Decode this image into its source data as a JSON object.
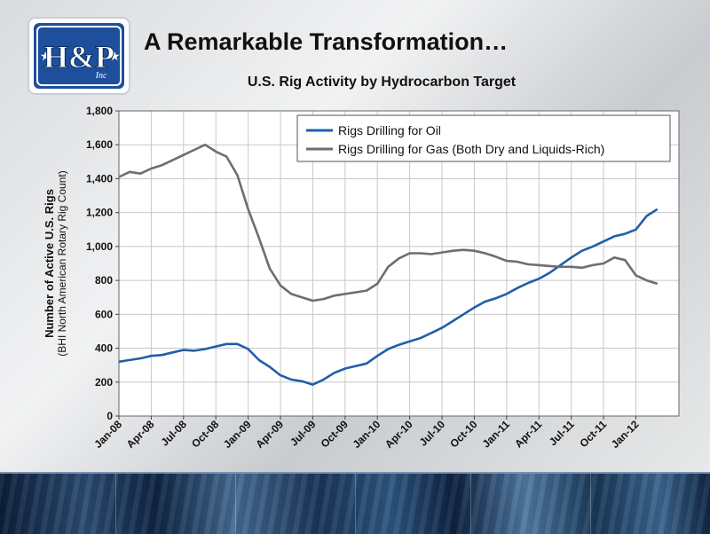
{
  "slide": {
    "title": "A  Remarkable Transformation…",
    "logo_text": "H&P",
    "logo_suffix": "Inc"
  },
  "colors": {
    "oil": "#1f5fa8",
    "gas": "#6e6e6e",
    "logo_blue": "#1d4f9c"
  },
  "chart_data": {
    "type": "line",
    "title": "U.S. Rig Activity by Hydrocarbon Target",
    "ylabel": "Number of Active U.S. Rigs",
    "ylabel2": "(BHI North American Rotary Rig Count)",
    "xlabel": "",
    "ylim": [
      0,
      1800
    ],
    "yticks": [
      "0",
      "200",
      "400",
      "600",
      "800",
      "1,000",
      "1,200",
      "1,400",
      "1,600",
      "1,800"
    ],
    "xlim": [
      "Jan-08",
      "May-12"
    ],
    "xticks": [
      "Jan-08",
      "Apr-08",
      "Jul-08",
      "Oct-08",
      "Jan-09",
      "Apr-09",
      "Jul-09",
      "Oct-09",
      "Jan-10",
      "Apr-10",
      "Jul-10",
      "Oct-10",
      "Jan-11",
      "Apr-11",
      "Jul-11",
      "Oct-11",
      "Jan-12"
    ],
    "grid": true,
    "legend": "top-right",
    "series": [
      {
        "name": "Rigs Drilling for Oil",
        "color": "#1f5fa8",
        "x": [
          "Jan-08",
          "Feb-08",
          "Mar-08",
          "Apr-08",
          "May-08",
          "Jun-08",
          "Jul-08",
          "Aug-08",
          "Sep-08",
          "Oct-08",
          "Nov-08",
          "Dec-08",
          "Jan-09",
          "Feb-09",
          "Mar-09",
          "Apr-09",
          "May-09",
          "Jun-09",
          "Jul-09",
          "Aug-09",
          "Sep-09",
          "Oct-09",
          "Nov-09",
          "Dec-09",
          "Jan-10",
          "Feb-10",
          "Mar-10",
          "Apr-10",
          "May-10",
          "Jun-10",
          "Jul-10",
          "Aug-10",
          "Sep-10",
          "Oct-10",
          "Nov-10",
          "Dec-10",
          "Jan-11",
          "Feb-11",
          "Mar-11",
          "Apr-11",
          "May-11",
          "Jun-11",
          "Jul-11",
          "Aug-11",
          "Sep-11",
          "Oct-11",
          "Nov-11",
          "Dec-11",
          "Jan-12",
          "Feb-12",
          "Mar-12"
        ],
        "values": [
          320,
          330,
          340,
          355,
          360,
          375,
          390,
          385,
          395,
          410,
          425,
          425,
          395,
          330,
          290,
          240,
          215,
          205,
          185,
          215,
          255,
          280,
          295,
          310,
          355,
          395,
          420,
          440,
          460,
          490,
          520,
          560,
          600,
          640,
          675,
          695,
          720,
          755,
          785,
          810,
          845,
          890,
          935,
          975,
          1000,
          1030,
          1060,
          1075,
          1100,
          1180,
          1220
        ]
      },
      {
        "name": "Rigs Drilling for Gas (Both Dry and Liquids-Rich)",
        "color": "#6e6e6e",
        "x": [
          "Jan-08",
          "Feb-08",
          "Mar-08",
          "Apr-08",
          "May-08",
          "Jun-08",
          "Jul-08",
          "Aug-08",
          "Sep-08",
          "Oct-08",
          "Nov-08",
          "Dec-08",
          "Jan-09",
          "Feb-09",
          "Mar-09",
          "Apr-09",
          "May-09",
          "Jun-09",
          "Jul-09",
          "Aug-09",
          "Sep-09",
          "Oct-09",
          "Nov-09",
          "Dec-09",
          "Jan-10",
          "Feb-10",
          "Mar-10",
          "Apr-10",
          "May-10",
          "Jun-10",
          "Jul-10",
          "Aug-10",
          "Sep-10",
          "Oct-10",
          "Nov-10",
          "Dec-10",
          "Jan-11",
          "Feb-11",
          "Mar-11",
          "Apr-11",
          "May-11",
          "Jun-11",
          "Jul-11",
          "Aug-11",
          "Sep-11",
          "Oct-11",
          "Nov-11",
          "Dec-11",
          "Jan-12",
          "Feb-12",
          "Mar-12"
        ],
        "values": [
          1410,
          1440,
          1430,
          1460,
          1480,
          1510,
          1540,
          1570,
          1600,
          1560,
          1530,
          1420,
          1220,
          1050,
          870,
          770,
          720,
          700,
          680,
          690,
          710,
          720,
          730,
          740,
          780,
          880,
          930,
          960,
          960,
          955,
          965,
          975,
          980,
          975,
          960,
          940,
          915,
          910,
          895,
          890,
          885,
          880,
          880,
          875,
          890,
          900,
          935,
          920,
          830,
          800,
          780
        ]
      }
    ]
  }
}
